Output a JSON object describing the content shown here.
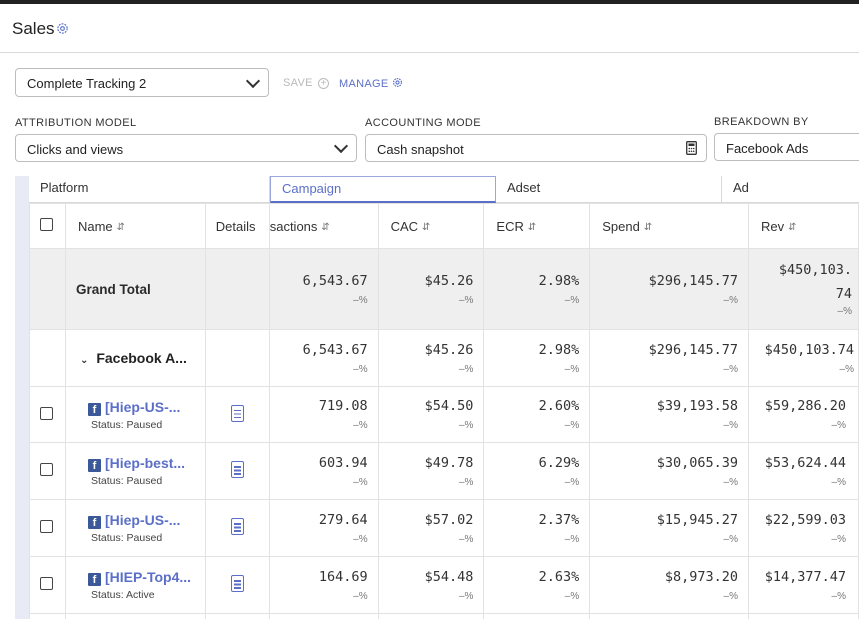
{
  "page": {
    "title": "Sales"
  },
  "toolbar": {
    "tracking_select": "Complete Tracking 2",
    "save_label": "SAVE",
    "manage_label": "MANAGE"
  },
  "filters": {
    "attribution_label": "ATTRIBUTION MODEL",
    "attribution_value": "Clicks and views",
    "accounting_label": "ACCOUNTING MODE",
    "accounting_value": "Cash snapshot",
    "breakdown_label": "BREAKDOWN BY",
    "breakdown_value": "Facebook Ads"
  },
  "tabs": [
    "Platform",
    "Campaign",
    "Adset",
    "Ad"
  ],
  "active_tab": "Campaign",
  "columns": {
    "name": "Name",
    "details": "Details",
    "transactions": "sactions",
    "cac": "CAC",
    "ecr": "ECR",
    "spend": "Spend",
    "rev": "Rev"
  },
  "grand_total": {
    "label": "Grand Total",
    "transactions": "6,543.67",
    "cac": "$45.26",
    "ecr": "2.98%",
    "spend": "$296,145.77",
    "rev_line1": "$450,103.",
    "rev_line2": "74",
    "change": "–%"
  },
  "group": {
    "label": "Facebook A...",
    "transactions": "6,543.67",
    "cac": "$45.26",
    "ecr": "2.98%",
    "spend": "$296,145.77",
    "rev": "$450,103.74",
    "change": "–%"
  },
  "rows": [
    {
      "name": "[Hiep-US-...",
      "status": "Status: Paused",
      "transactions": "719.08",
      "cac": "$54.50",
      "ecr": "2.60%",
      "spend": "$39,193.58",
      "rev": "$59,286.20",
      "change": "–%"
    },
    {
      "name": "[Hiep-best...",
      "status": "Status: Paused",
      "transactions": "603.94",
      "cac": "$49.78",
      "ecr": "6.29%",
      "spend": "$30,065.39",
      "rev": "$53,624.44",
      "change": "–%"
    },
    {
      "name": "[Hiep-US-...",
      "status": "Status: Paused",
      "transactions": "279.64",
      "cac": "$57.02",
      "ecr": "2.37%",
      "spend": "$15,945.27",
      "rev": "$22,599.03",
      "change": "–%"
    },
    {
      "name": "[HIEP-Top4...",
      "status": "Status: Active",
      "transactions": "164.69",
      "cac": "$54.48",
      "ecr": "2.63%",
      "spend": "$8,973.20",
      "rev": "$14,377.47",
      "change": "–%"
    }
  ],
  "colors": {
    "accent": "#5b6fc8",
    "facebook": "#3b5998",
    "grand_bg": "#efefef"
  },
  "icons": [
    "settings-gear-icon",
    "save-plus-icon",
    "manage-gear-icon",
    "chevron-down-icon",
    "calculator-icon",
    "sort-icon",
    "facebook-icon",
    "document-icon",
    "checkbox"
  ]
}
